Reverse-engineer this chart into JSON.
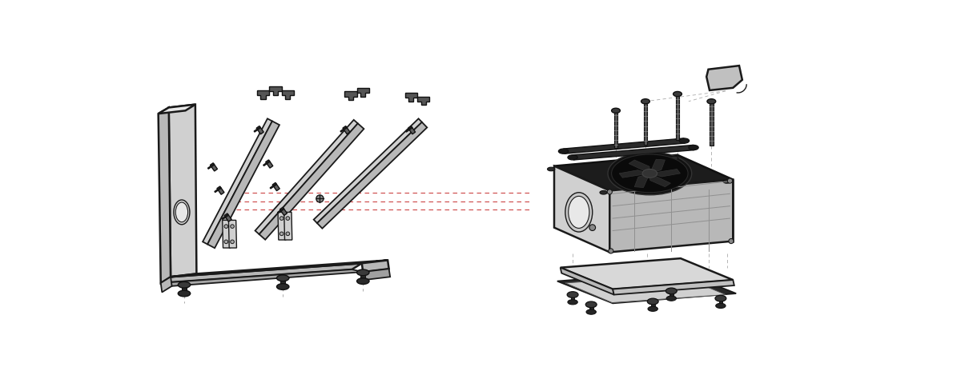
{
  "figure_width": 12.0,
  "figure_height": 4.79,
  "dpi": 100,
  "bg_color": "#ffffff",
  "fill_light": "#d0d0d0",
  "fill_mid": "#b8b8b8",
  "fill_dark": "#404040",
  "stroke": "#1a1a1a",
  "stroke_dark": "#111111",
  "fill_white": "#e8e8e8",
  "red_dash": "#cc4444",
  "lw": 1.3,
  "lwt": 1.8
}
